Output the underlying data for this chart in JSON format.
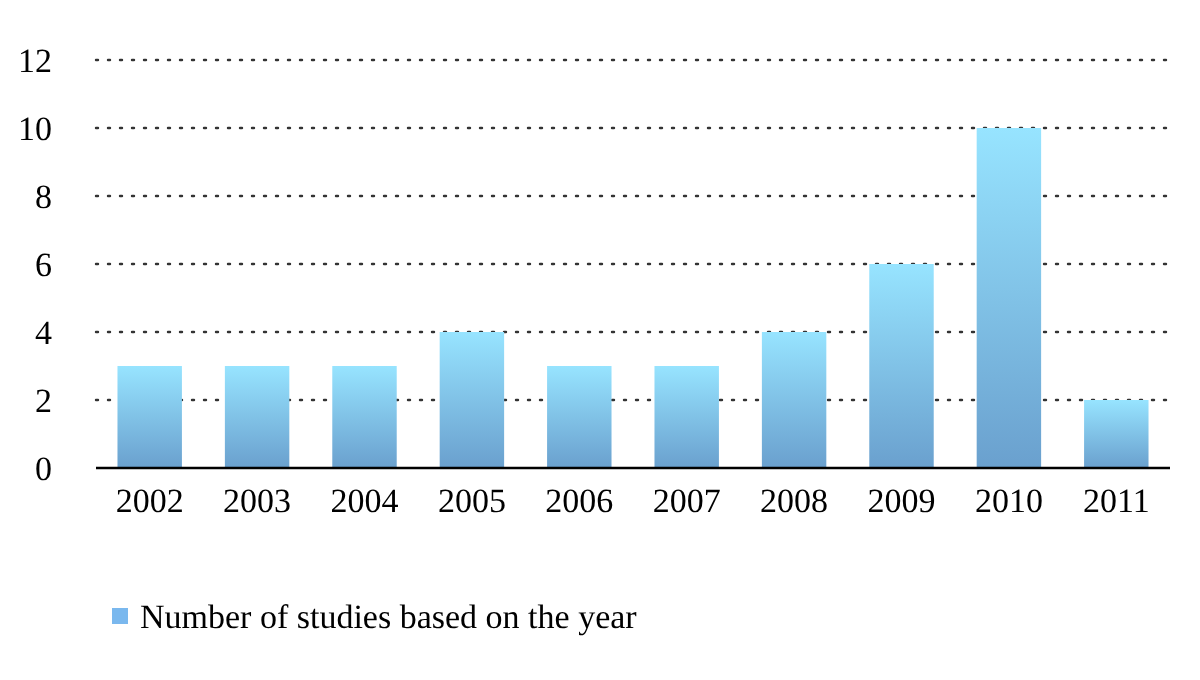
{
  "chart_data": {
    "type": "bar",
    "categories": [
      "2002",
      "2003",
      "2004",
      "2005",
      "2006",
      "2007",
      "2008",
      "2009",
      "2010",
      "2011"
    ],
    "series": [
      {
        "name": "Number of studies based on the year",
        "color": "#7ab8ee",
        "values": [
          3,
          3,
          3,
          4,
          3,
          3,
          4,
          6,
          10,
          2
        ]
      }
    ],
    "ylim": [
      0,
      12
    ],
    "yticks": [
      0,
      2,
      4,
      6,
      8,
      10,
      12
    ],
    "grid": "y",
    "legend": "bottom"
  }
}
